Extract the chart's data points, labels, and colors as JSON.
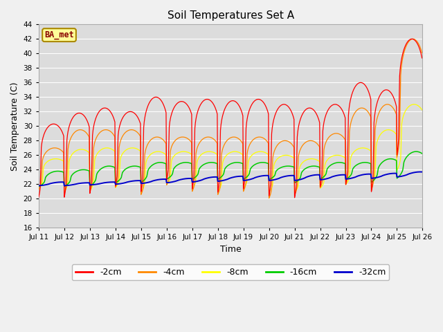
{
  "title": "Soil Temperatures Set A",
  "xlabel": "Time",
  "ylabel": "Soil Temperature (C)",
  "ylim": [
    16,
    44
  ],
  "yticks": [
    16,
    18,
    20,
    22,
    24,
    26,
    28,
    30,
    32,
    34,
    36,
    38,
    40,
    42,
    44
  ],
  "series_colors": {
    "-2cm": "#ff0000",
    "-4cm": "#ff8800",
    "-8cm": "#ffff00",
    "-16cm": "#00cc00",
    "-32cm": "#0000cc"
  },
  "legend_label": "BA_met",
  "figsize": [
    6.4,
    4.8
  ],
  "dpi": 100,
  "bg_color": "#f0f0f0",
  "plot_bg": "#dcdcdc",
  "grid_color": "#ffffff",
  "peak_2cm": [
    30.3,
    31.8,
    32.5,
    32.0,
    34.0,
    33.4,
    33.7,
    33.5,
    33.7,
    33.0,
    32.5,
    33.0,
    36.0,
    35.0,
    42.0
  ],
  "tmin_2cm": [
    18.3,
    18.0,
    18.5,
    19.8,
    18.5,
    20.5,
    19.0,
    18.5,
    19.0,
    18.0,
    17.8,
    19.5,
    19.3,
    18.3,
    23.0
  ],
  "peak_4cm": [
    27.0,
    29.5,
    29.5,
    29.5,
    28.5,
    28.5,
    28.5,
    28.5,
    28.5,
    28.0,
    28.0,
    29.0,
    32.5,
    33.0,
    42.0
  ],
  "tmin_4cm": [
    20.5,
    19.5,
    20.0,
    20.5,
    19.5,
    21.0,
    20.0,
    19.5,
    20.0,
    19.0,
    19.5,
    20.5,
    20.5,
    19.5,
    23.5
  ],
  "peak_8cm": [
    25.5,
    26.8,
    27.0,
    27.0,
    26.5,
    26.5,
    26.5,
    26.5,
    26.5,
    26.0,
    25.5,
    26.0,
    27.0,
    29.5,
    33.0
  ],
  "tmin_8cm": [
    21.0,
    20.5,
    20.5,
    21.0,
    20.5,
    21.5,
    21.0,
    20.5,
    21.0,
    20.5,
    20.5,
    21.0,
    21.5,
    21.0,
    23.0
  ],
  "peak_16cm": [
    23.8,
    24.0,
    24.5,
    24.5,
    25.0,
    25.0,
    25.0,
    25.0,
    25.0,
    24.5,
    24.5,
    25.0,
    25.0,
    25.5,
    26.5
  ],
  "tmin_16cm": [
    21.5,
    21.5,
    21.5,
    22.0,
    22.0,
    22.5,
    22.5,
    22.5,
    22.5,
    22.5,
    22.0,
    22.5,
    22.5,
    22.0,
    22.5
  ],
  "peak_32cm": [
    22.3,
    22.2,
    22.3,
    22.5,
    22.7,
    22.8,
    23.0,
    23.1,
    23.2,
    23.2,
    23.3,
    23.3,
    23.4,
    23.5,
    23.7
  ],
  "tmin_32cm": [
    21.8,
    21.8,
    21.9,
    22.0,
    22.1,
    22.2,
    22.3,
    22.4,
    22.5,
    22.5,
    22.5,
    22.6,
    22.7,
    22.8,
    23.0
  ],
  "peak_hour_2cm": 14,
  "peak_hour_4cm": 15,
  "peak_hour_8cm": 16,
  "peak_hour_16cm": 18,
  "peak_hour_32cm": 22,
  "sharpness": 3.5
}
